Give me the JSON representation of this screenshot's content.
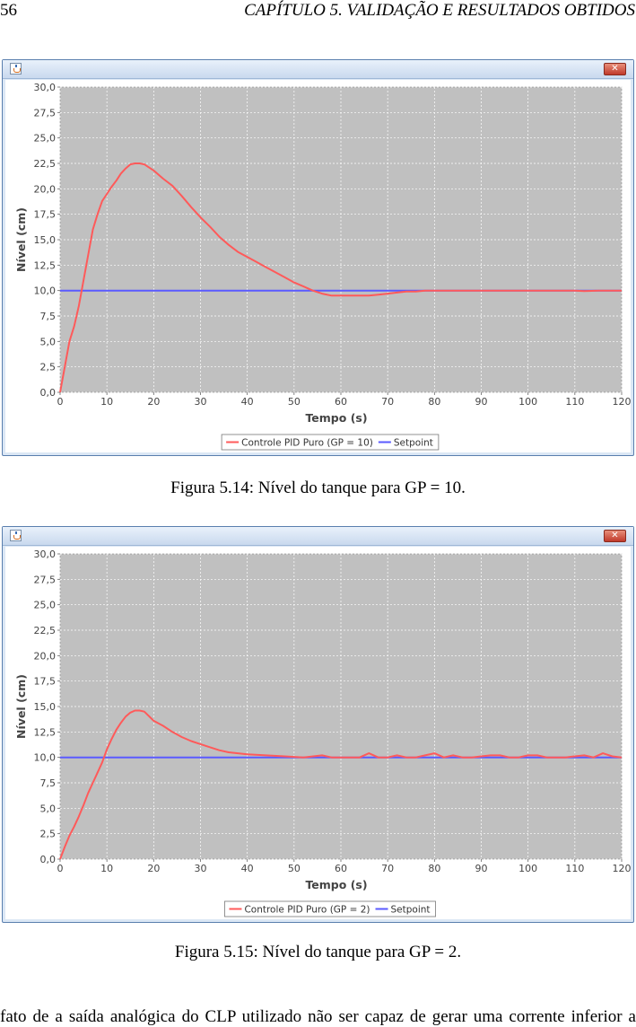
{
  "header": {
    "page_number": "56",
    "chapter_title": "CAPÍTULO 5.  VALIDAÇÃO E RESULTADOS OBTIDOS"
  },
  "figures": [
    {
      "caption": "Figura 5.14: Nível do tanque para GP = 10.",
      "chart_data": {
        "type": "line",
        "xlabel": "Tempo (s)",
        "ylabel": "Nível (cm)",
        "xlim": [
          0,
          120
        ],
        "ylim": [
          0,
          30
        ],
        "x_ticks": [
          "0",
          "10",
          "20",
          "30",
          "40",
          "50",
          "60",
          "70",
          "80",
          "90",
          "100",
          "110",
          "120"
        ],
        "y_ticks": [
          "0,0",
          "2,5",
          "5,0",
          "7,5",
          "10,0",
          "12,5",
          "15,0",
          "17,5",
          "20,0",
          "22,5",
          "25,0",
          "27,5",
          "30,0"
        ],
        "grid": true,
        "legend_position": "bottom",
        "series": [
          {
            "name": "Controle PID Puro (GP = 10)",
            "color": "#ff5a5a",
            "points": [
              [
                0,
                0
              ],
              [
                1,
                2.5
              ],
              [
                2,
                5
              ],
              [
                3,
                6.5
              ],
              [
                4,
                8.5
              ],
              [
                5,
                11
              ],
              [
                6,
                13.5
              ],
              [
                7,
                16
              ],
              [
                8,
                17.5
              ],
              [
                9,
                18.8
              ],
              [
                10,
                19.5
              ],
              [
                11,
                20.2
              ],
              [
                12,
                20.8
              ],
              [
                13,
                21.5
              ],
              [
                14,
                22
              ],
              [
                15,
                22.4
              ],
              [
                16,
                22.5
              ],
              [
                17,
                22.5
              ],
              [
                18,
                22.4
              ],
              [
                20,
                21.8
              ],
              [
                22,
                21
              ],
              [
                24,
                20.3
              ],
              [
                26,
                19.3
              ],
              [
                28,
                18.2
              ],
              [
                30,
                17.2
              ],
              [
                32,
                16.3
              ],
              [
                34,
                15.3
              ],
              [
                36,
                14.5
              ],
              [
                38,
                13.8
              ],
              [
                40,
                13.3
              ],
              [
                42,
                12.8
              ],
              [
                44,
                12.3
              ],
              [
                46,
                11.8
              ],
              [
                48,
                11.3
              ],
              [
                50,
                10.8
              ],
              [
                52,
                10.4
              ],
              [
                54,
                10
              ],
              [
                56,
                9.7
              ],
              [
                58,
                9.5
              ],
              [
                60,
                9.5
              ],
              [
                62,
                9.5
              ],
              [
                64,
                9.5
              ],
              [
                66,
                9.5
              ],
              [
                68,
                9.6
              ],
              [
                70,
                9.7
              ],
              [
                72,
                9.8
              ],
              [
                74,
                9.9
              ],
              [
                76,
                9.9
              ],
              [
                78,
                10
              ],
              [
                80,
                10
              ],
              [
                85,
                10
              ],
              [
                90,
                10
              ],
              [
                95,
                10
              ],
              [
                100,
                10
              ],
              [
                105,
                10
              ],
              [
                110,
                10
              ],
              [
                112,
                9.95
              ],
              [
                115,
                10
              ],
              [
                120,
                10
              ]
            ]
          },
          {
            "name": "Setpoint",
            "color": "#5a5aff",
            "points": [
              [
                0,
                10
              ],
              [
                120,
                10
              ]
            ]
          }
        ]
      }
    },
    {
      "caption": "Figura 5.15: Nível do tanque para GP = 2.",
      "chart_data": {
        "type": "line",
        "xlabel": "Tempo (s)",
        "ylabel": "Nível (cm)",
        "xlim": [
          0,
          120
        ],
        "ylim": [
          0,
          30
        ],
        "x_ticks": [
          "0",
          "10",
          "20",
          "30",
          "40",
          "50",
          "60",
          "70",
          "80",
          "90",
          "100",
          "110",
          "120"
        ],
        "y_ticks": [
          "0,0",
          "2,5",
          "5,0",
          "7,5",
          "10,0",
          "12,5",
          "15,0",
          "17,5",
          "20,0",
          "22,5",
          "25,0",
          "27,5",
          "30,0"
        ],
        "grid": true,
        "legend_position": "bottom",
        "series": [
          {
            "name": "Controle PID Puro (GP = 2)",
            "color": "#ff5a5a",
            "points": [
              [
                0,
                0
              ],
              [
                1,
                1.2
              ],
              [
                2,
                2.3
              ],
              [
                3,
                3.2
              ],
              [
                4,
                4.2
              ],
              [
                5,
                5.3
              ],
              [
                6,
                6.5
              ],
              [
                7,
                7.5
              ],
              [
                8,
                8.5
              ],
              [
                9,
                9.5
              ],
              [
                10,
                10.8
              ],
              [
                11,
                11.8
              ],
              [
                12,
                12.7
              ],
              [
                13,
                13.4
              ],
              [
                14,
                14
              ],
              [
                15,
                14.4
              ],
              [
                16,
                14.6
              ],
              [
                17,
                14.6
              ],
              [
                18,
                14.5
              ],
              [
                20,
                13.6
              ],
              [
                22,
                13.1
              ],
              [
                24,
                12.5
              ],
              [
                26,
                12
              ],
              [
                28,
                11.6
              ],
              [
                30,
                11.3
              ],
              [
                32,
                11
              ],
              [
                34,
                10.7
              ],
              [
                36,
                10.5
              ],
              [
                40,
                10.3
              ],
              [
                44,
                10.2
              ],
              [
                48,
                10.1
              ],
              [
                52,
                10
              ],
              [
                56,
                10.2
              ],
              [
                58,
                10
              ],
              [
                62,
                10
              ],
              [
                64,
                10
              ],
              [
                66,
                10.4
              ],
              [
                68,
                10
              ],
              [
                70,
                10
              ],
              [
                72,
                10.2
              ],
              [
                74,
                10
              ],
              [
                76,
                10
              ],
              [
                78,
                10.2
              ],
              [
                80,
                10.4
              ],
              [
                82,
                10
              ],
              [
                84,
                10.2
              ],
              [
                86,
                10
              ],
              [
                88,
                10
              ],
              [
                90,
                10.1
              ],
              [
                92,
                10.2
              ],
              [
                94,
                10.2
              ],
              [
                96,
                10
              ],
              [
                98,
                10
              ],
              [
                100,
                10.2
              ],
              [
                102,
                10.2
              ],
              [
                104,
                10
              ],
              [
                106,
                10
              ],
              [
                108,
                10
              ],
              [
                110,
                10.1
              ],
              [
                112,
                10.2
              ],
              [
                114,
                10
              ],
              [
                116,
                10.4
              ],
              [
                118,
                10.1
              ],
              [
                120,
                10
              ]
            ]
          },
          {
            "name": "Setpoint",
            "color": "#5a5aff",
            "points": [
              [
                0,
                10
              ],
              [
                120,
                10
              ]
            ]
          }
        ]
      }
    }
  ],
  "body_text": "fato de a saída analógica do CLP utilizado não ser capaz de gerar uma corrente inferior a"
}
